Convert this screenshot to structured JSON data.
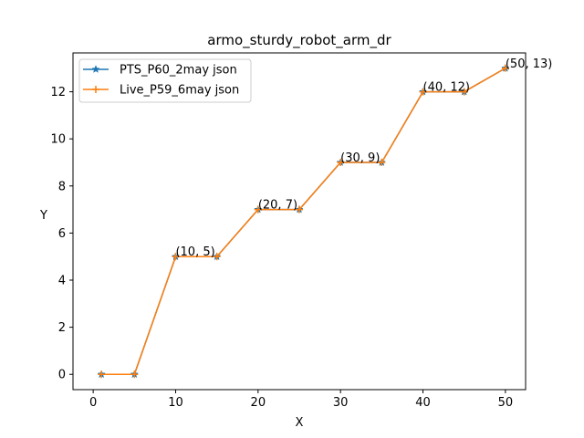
{
  "chart_data": {
    "type": "line",
    "title": "armo_sturdy_robot_arm_dr",
    "xlabel": "X",
    "ylabel": "Y",
    "xlim": [
      -2.45,
      52.45
    ],
    "ylim": [
      -0.65,
      13.65
    ],
    "x_ticks": [
      0,
      10,
      20,
      30,
      40,
      50
    ],
    "y_ticks": [
      0,
      2,
      4,
      6,
      8,
      10,
      12
    ],
    "grid": false,
    "legend_position": "top-left",
    "series": [
      {
        "name": "PTS_P60_2may json",
        "color": "#1f77b4",
        "marker": "star",
        "x": [
          1,
          5,
          10,
          15,
          20,
          25,
          30,
          35,
          40,
          45,
          50
        ],
        "y": [
          0,
          0,
          5,
          5,
          7,
          7,
          9,
          9,
          12,
          12,
          13
        ]
      },
      {
        "name": "Live_P59_6may json",
        "color": "#ff7f0e",
        "marker": "plus",
        "x": [
          1,
          5,
          10,
          15,
          20,
          25,
          30,
          35,
          40,
          45,
          50
        ],
        "y": [
          0,
          0,
          5,
          5,
          7,
          7,
          9,
          9,
          12,
          12,
          13
        ]
      }
    ],
    "annotations": [
      {
        "x": 10,
        "y": 5,
        "text": "(10, 5)"
      },
      {
        "x": 20,
        "y": 7,
        "text": "(20, 7)"
      },
      {
        "x": 30,
        "y": 9,
        "text": "(30, 9)"
      },
      {
        "x": 40,
        "y": 12,
        "text": "(40, 12)"
      },
      {
        "x": 50,
        "y": 13,
        "text": "(50, 13)"
      }
    ]
  }
}
